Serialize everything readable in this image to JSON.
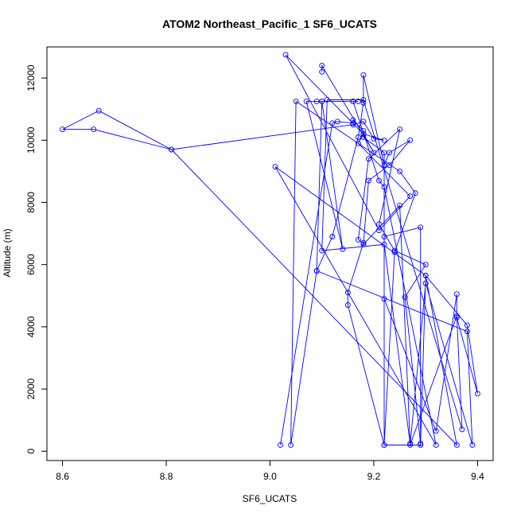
{
  "chart_data": {
    "type": "line",
    "title": "ATOM2 Northeast_Pacific_1 SF6_UCATS",
    "xlabel": "SF6_UCATS",
    "ylabel": "Altitude (m)",
    "xlim": [
      8.57,
      9.43
    ],
    "ylim": [
      -300,
      13000
    ],
    "x_ticks": [
      8.6,
      8.8,
      9.0,
      9.2,
      9.4
    ],
    "x_tick_labels": [
      "8.6",
      "8.8",
      "9.0",
      "9.2",
      "9.4"
    ],
    "y_ticks": [
      0,
      2000,
      4000,
      6000,
      8000,
      10000,
      12000
    ],
    "y_tick_labels": [
      "0",
      "2000",
      "4000",
      "6000",
      "8000",
      "10000",
      "12000"
    ],
    "grid": false,
    "legend": "none",
    "series_color": "#0000ff",
    "series": [
      {
        "x": [
          9.02,
          9.12,
          9.13,
          9.16,
          9.16,
          9.18,
          9.18,
          9.22,
          9.22,
          9.29,
          9.3,
          9.38,
          9.4,
          9.36,
          9.36,
          9.32,
          9.22,
          9.22,
          9.29,
          9.29,
          9.26,
          9.3,
          9.24,
          9.21,
          9.25,
          9.19,
          9.17,
          9.18,
          9.15,
          9.15,
          9.22,
          9.24,
          9.28,
          9.25,
          9.05,
          9.04,
          9.09,
          9.12,
          9.17,
          9.18,
          9.18,
          9.22,
          9.23,
          9.27,
          9.23,
          9.19,
          9.18,
          9.25,
          9.27,
          9.22,
          9.1,
          9.11,
          9.18,
          9.37,
          9.36,
          9.27,
          9.3,
          9.39,
          9.38,
          9.09,
          9.1,
          9.14,
          9.07,
          9.09,
          9.1,
          9.17,
          9.16,
          9.16,
          9.21,
          9.22,
          9.32,
          9.01,
          9.3,
          9.36,
          8.81,
          8.66,
          8.6,
          8.67,
          8.81,
          9.16,
          9.18,
          9.2,
          9.22,
          9.18,
          9.17,
          9.27,
          9.21,
          9.03,
          9.18,
          9.2,
          9.1,
          9.1
        ],
        "y": [
          200,
          10550,
          10600,
          10550,
          10650,
          10300,
          10100,
          9600,
          200,
          200,
          5650,
          4050,
          1850,
          4300,
          5050,
          650,
          4900,
          6900,
          7200,
          250,
          4950,
          6000,
          6450,
          7300,
          10350,
          9400,
          6800,
          6700,
          5100,
          4700,
          200,
          6400,
          8300,
          9000,
          11250,
          200,
          5800,
          6900,
          10100,
          11200,
          12100,
          9200,
          9600,
          10000,
          9200,
          8700,
          6650,
          7900,
          250,
          6650,
          6450,
          11300,
          11300,
          700,
          4350,
          200,
          5400,
          200,
          3850,
          5800,
          11250,
          6500,
          11250,
          11250,
          11250,
          11250,
          11250,
          11250,
          8700,
          8500,
          200,
          9150,
          5650,
          200,
          9700,
          10350,
          10350,
          10950,
          9700,
          10500,
          10600,
          10050,
          10000,
          10200,
          9900,
          8200,
          7100,
          12750,
          10200,
          9600,
          12400,
          12200
        ]
      }
    ]
  }
}
